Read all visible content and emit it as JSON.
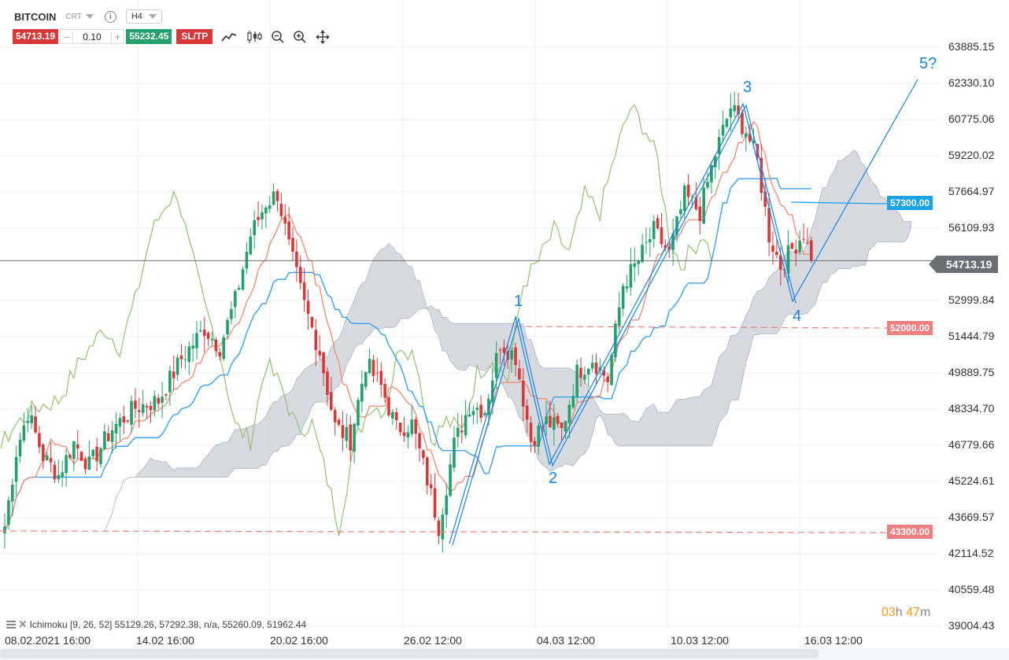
{
  "header": {
    "symbol": "BITCOIN",
    "symbol_tag": "CRT",
    "info_glyph": "i",
    "timeframe": "H4"
  },
  "trade": {
    "sell_price": "54713.19",
    "minus": "–",
    "quantity": "0.10",
    "plus": "+",
    "buy_price": "55232.45",
    "sltp_label": "SL/TP"
  },
  "tools": [
    "line-chart-icon",
    "candlestick-icon",
    "zoom-out-icon",
    "zoom-in-icon",
    "move-icon"
  ],
  "price_axis": [
    "63885.15",
    "62330.10",
    "60775.06",
    "59220.02",
    "57664.97",
    "56109.93",
    "52999.84",
    "51444.79",
    "49889.75",
    "48334.70",
    "46779.66",
    "45224.61",
    "43669.57",
    "42114.52",
    "40559.48",
    "39004.43"
  ],
  "date_axis": [
    "08.02.2021 16:00",
    "14.02 16:00",
    "20.02 16:00",
    "26.02 12:00",
    "04.03 12:00",
    "10.03 12:00",
    "16.03 12:00"
  ],
  "current_price": "54713.19",
  "levels": [
    {
      "label": "57300.00",
      "color": "#1aa3e8"
    },
    {
      "label": "52000.00",
      "color": "#f08080"
    },
    {
      "label": "43300.00",
      "color": "#f08080"
    }
  ],
  "waves": [
    "1",
    "2",
    "3",
    "4",
    "5?"
  ],
  "indicator_legend": "Ichimoku [9, 26, 52] 55129.26, 57292.38, n/a, 55260.09, 51962.44",
  "timer": {
    "hours": "03",
    "h": "h",
    "minutes": "47",
    "m": "m"
  },
  "colors": {
    "up": "#23a06b",
    "down": "#d93838",
    "tenkan": "#f08a72",
    "kijun": "#3aa0ef",
    "chikou": "#9cc57a",
    "cloud": "#c9ced6",
    "wave": "#1a85e0"
  },
  "chart_data": {
    "type": "candlestick",
    "ylim": [
      39004.43,
      63885.15
    ],
    "anchors": [
      {
        "t": 0,
        "p": 43300
      },
      {
        "t": 3,
        "p": 46500
      },
      {
        "t": 6,
        "p": 48200
      },
      {
        "t": 10,
        "p": 46300
      },
      {
        "t": 14,
        "p": 45500
      },
      {
        "t": 18,
        "p": 46900
      },
      {
        "t": 22,
        "p": 45900
      },
      {
        "t": 28,
        "p": 47500
      },
      {
        "t": 34,
        "p": 48400
      },
      {
        "t": 40,
        "p": 48700
      },
      {
        "t": 46,
        "p": 50500
      },
      {
        "t": 52,
        "p": 51800
      },
      {
        "t": 56,
        "p": 51000
      },
      {
        "t": 60,
        "p": 53000
      },
      {
        "t": 64,
        "p": 55800
      },
      {
        "t": 68,
        "p": 57200
      },
      {
        "t": 71,
        "p": 57600
      },
      {
        "t": 74,
        "p": 55300
      },
      {
        "t": 78,
        "p": 52800
      },
      {
        "t": 82,
        "p": 50800
      },
      {
        "t": 86,
        "p": 47600
      },
      {
        "t": 90,
        "p": 47000
      },
      {
        "t": 94,
        "p": 50300
      },
      {
        "t": 98,
        "p": 49300
      },
      {
        "t": 102,
        "p": 47500
      },
      {
        "t": 106,
        "p": 47700
      },
      {
        "t": 110,
        "p": 45300
      },
      {
        "t": 113,
        "p": 43300
      },
      {
        "t": 117,
        "p": 46800
      },
      {
        "t": 121,
        "p": 48500
      },
      {
        "t": 125,
        "p": 48300
      },
      {
        "t": 129,
        "p": 51200
      },
      {
        "t": 133,
        "p": 50600
      },
      {
        "t": 137,
        "p": 47000
      },
      {
        "t": 141,
        "p": 47800
      },
      {
        "t": 145,
        "p": 47400
      },
      {
        "t": 149,
        "p": 49900
      },
      {
        "t": 153,
        "p": 50500
      },
      {
        "t": 157,
        "p": 49600
      },
      {
        "t": 161,
        "p": 53700
      },
      {
        "t": 165,
        "p": 54700
      },
      {
        "t": 169,
        "p": 56000
      },
      {
        "t": 173,
        "p": 55000
      },
      {
        "t": 177,
        "p": 57500
      },
      {
        "t": 181,
        "p": 56800
      },
      {
        "t": 185,
        "p": 59300
      },
      {
        "t": 189,
        "p": 61300
      },
      {
        "t": 193,
        "p": 60300
      },
      {
        "t": 196,
        "p": 59000
      },
      {
        "t": 199,
        "p": 55800
      },
      {
        "t": 202,
        "p": 54500
      },
      {
        "t": 205,
        "p": 55200
      },
      {
        "t": 208,
        "p": 55900
      },
      {
        "t": 210,
        "p": 54713
      }
    ]
  }
}
